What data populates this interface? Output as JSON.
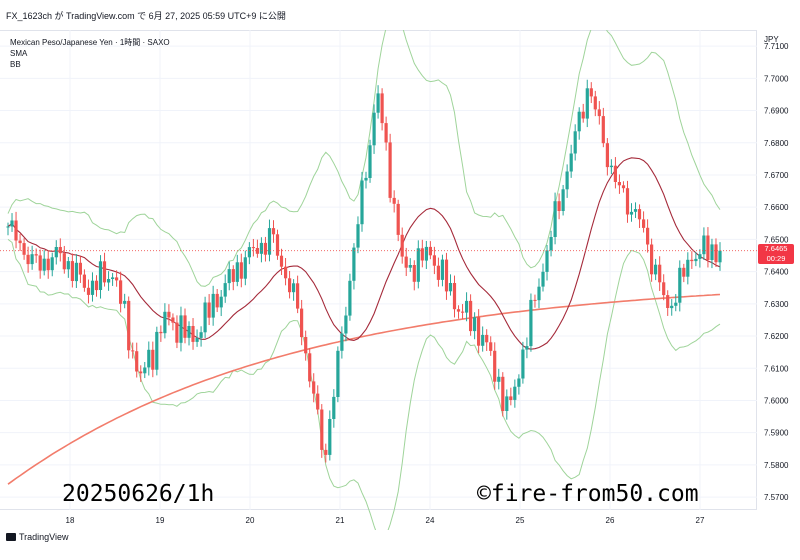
{
  "header": {
    "caption": "FX_1623ch が TradingView.com で 6月 27, 2025 05:59 UTC+9 に公開"
  },
  "legend": {
    "symbol": "Mexican Peso/Japanese Yen · 1時間 · SAXO",
    "indicator1": "SMA",
    "indicator2": "BB"
  },
  "axis": {
    "unit": "JPY",
    "y_ticks": [
      "7.7100",
      "7.7000",
      "7.6900",
      "7.6800",
      "7.6700",
      "7.6600",
      "7.6500",
      "7.6400",
      "7.6300",
      "7.6200",
      "7.6100",
      "7.6000",
      "7.5900",
      "7.5800",
      "7.5700"
    ],
    "x_ticks": [
      "18",
      "19",
      "20",
      "21",
      "24",
      "25",
      "26",
      "27"
    ]
  },
  "price_badge": {
    "price": "7.6465",
    "countdown": "00:29"
  },
  "watermark": {
    "date_label": "20250626/1h",
    "copyright": "©fire-from50.com"
  },
  "footer": {
    "logo_text": "TradingView"
  },
  "colors": {
    "up": "#26a69a",
    "down": "#ef5350",
    "sma_fast": "#a52a3a",
    "sma_slow": "#f27c6b",
    "bb": "#9fd49a",
    "badge": "#f23645"
  },
  "chart_data": {
    "type": "candlestick",
    "title": "Mexican Peso/Japanese Yen · 1時間 · SAXO",
    "ylabel": "JPY",
    "ylim": [
      7.566,
      7.715
    ],
    "x_categories": [
      "18",
      "19",
      "20",
      "21",
      "24",
      "25",
      "26",
      "27"
    ],
    "last_price": 7.6465,
    "anchor_closes": [
      {
        "day": "17",
        "close": 7.654
      },
      {
        "day": "17",
        "close": 7.642
      },
      {
        "day": "18",
        "close": 7.645
      },
      {
        "day": "18",
        "close": 7.635
      },
      {
        "day": "18",
        "close": 7.64
      },
      {
        "day": "19",
        "close": 7.606
      },
      {
        "day": "19",
        "close": 7.626
      },
      {
        "day": "19",
        "close": 7.619
      },
      {
        "day": "20",
        "close": 7.633
      },
      {
        "day": "20",
        "close": 7.644
      },
      {
        "day": "20",
        "close": 7.651
      },
      {
        "day": "21",
        "close": 7.628
      },
      {
        "day": "21",
        "close": 7.582
      },
      {
        "day": "21",
        "close": 7.64
      },
      {
        "day": "23",
        "close": 7.696
      },
      {
        "day": "24",
        "close": 7.64
      },
      {
        "day": "24",
        "close": 7.646
      },
      {
        "day": "24",
        "close": 7.63
      },
      {
        "day": "25",
        "close": 7.62
      },
      {
        "day": "25",
        "close": 7.596
      },
      {
        "day": "25",
        "close": 7.632
      },
      {
        "day": "26",
        "close": 7.665
      },
      {
        "day": "26",
        "close": 7.698
      },
      {
        "day": "26",
        "close": 7.668
      },
      {
        "day": "26",
        "close": 7.655
      },
      {
        "day": "27",
        "close": 7.628
      },
      {
        "day": "27",
        "close": 7.646
      },
      {
        "day": "27",
        "close": 7.6465
      }
    ],
    "series": [
      {
        "name": "SMA"
      },
      {
        "name": "BB"
      }
    ]
  }
}
